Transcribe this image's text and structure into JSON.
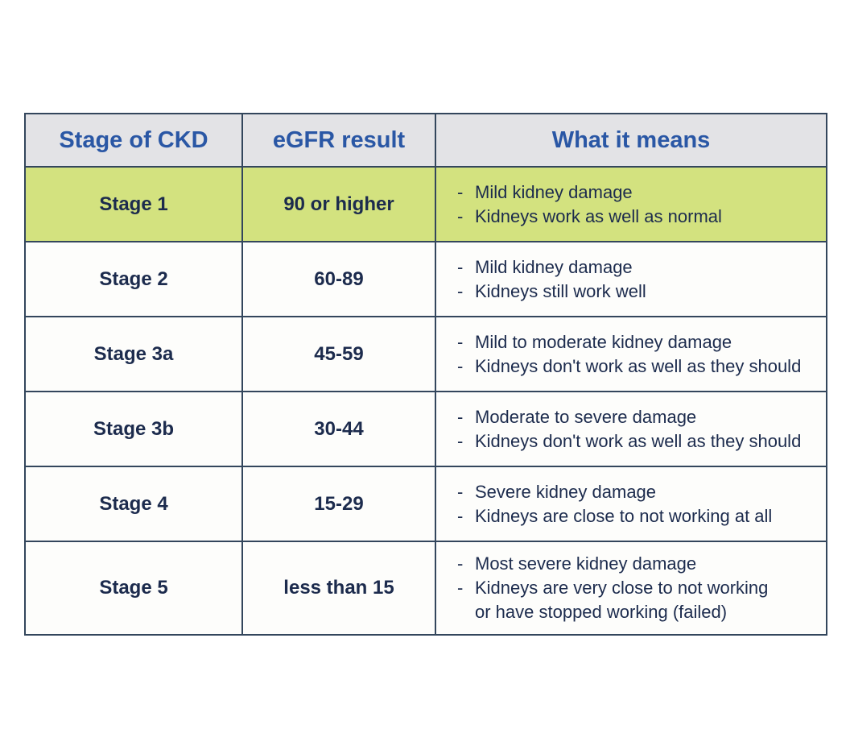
{
  "colors": {
    "table_border": "#33465c",
    "header_bg": "#e3e3e6",
    "header_text": "#2a57a5",
    "body_text": "#1c2b4d",
    "row_bg": "#fdfdfb",
    "highlight_row_bg": "#d3e27f"
  },
  "chart_data": {
    "type": "table",
    "bullet_marker": "-",
    "columns": [
      "Stage of CKD",
      "eGFR result",
      "What it means"
    ],
    "rows": [
      {
        "stage": "Stage 1",
        "egfr": "90 or higher",
        "highlighted": true,
        "meanings": [
          "Mild kidney damage",
          "Kidneys work as well as normal"
        ]
      },
      {
        "stage": "Stage 2",
        "egfr": "60-89",
        "highlighted": false,
        "meanings": [
          "Mild kidney damage",
          "Kidneys still work well"
        ]
      },
      {
        "stage": "Stage 3a",
        "egfr": "45-59",
        "highlighted": false,
        "meanings": [
          "Mild to moderate kidney damage",
          "Kidneys don't work as well as they should"
        ]
      },
      {
        "stage": "Stage 3b",
        "egfr": "30-44",
        "highlighted": false,
        "meanings": [
          "Moderate to severe damage",
          "Kidneys don't work as well as they should"
        ]
      },
      {
        "stage": "Stage 4",
        "egfr": "15-29",
        "highlighted": false,
        "meanings": [
          "Severe kidney damage",
          "Kidneys are close to not working at all"
        ]
      },
      {
        "stage": "Stage 5",
        "egfr": "less than 15",
        "highlighted": false,
        "meanings": [
          "Most severe kidney damage",
          "Kidneys are very close to not working\nor have stopped working (failed)"
        ]
      }
    ]
  }
}
